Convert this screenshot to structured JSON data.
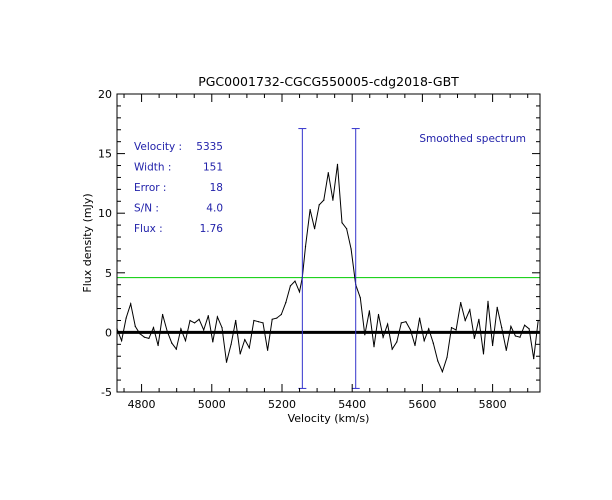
{
  "chart_data": {
    "type": "line",
    "title": "PGC0001732-CGCG550005-cdg2018-GBT",
    "xlabel": "Velocity (km/s)",
    "ylabel": "Flux density (mJy)",
    "xlim": [
      4730,
      5935
    ],
    "ylim": [
      -5,
      20
    ],
    "xticks": [
      4800,
      5000,
      5200,
      5400,
      5600,
      5800
    ],
    "yticks": [
      -5,
      0,
      5,
      10,
      15,
      20
    ],
    "grid": false,
    "annotation": "Smoothed spectrum",
    "stats": [
      {
        "label": "Velocity :",
        "value": "5335"
      },
      {
        "label": "Width :",
        "value": "151"
      },
      {
        "label": "Error :",
        "value": "18"
      },
      {
        "label": "S/N :",
        "value": "4.0"
      },
      {
        "label": "Flux :",
        "value": "1.76"
      }
    ],
    "zero_line": 0,
    "threshold_line": 4.6,
    "markers": [
      {
        "x": 5258,
        "ymin": -4.7,
        "ymax": 17.1
      },
      {
        "x": 5410,
        "ymin": -4.7,
        "ymax": 17.1
      }
    ],
    "colors": {
      "spectrum": "#000000",
      "threshold": "#00cc00",
      "markers": "#3333cc",
      "stats_text": "#2222aa"
    },
    "series": [
      {
        "x": [
          4730,
          4743,
          4756,
          4769,
          4782,
          4795,
          4808,
          4821,
          4834,
          4847,
          4860,
          4873,
          4886,
          4899,
          4912,
          4925,
          4938,
          4951,
          4964,
          4977,
          4990,
          5003,
          5016,
          5029,
          5042,
          5055,
          5068,
          5081,
          5094,
          5107,
          5120,
          5133,
          5146,
          5159,
          5172,
          5185,
          5198,
          5211,
          5224,
          5237,
          5250,
          5258,
          5267,
          5280,
          5293,
          5306,
          5319,
          5332,
          5345,
          5358,
          5371,
          5384,
          5397,
          5410,
          5423,
          5436,
          5449,
          5462,
          5475,
          5488,
          5501,
          5514,
          5527,
          5540,
          5553,
          5566,
          5579,
          5592,
          5605,
          5618,
          5631,
          5644,
          5657,
          5670,
          5683,
          5696,
          5709,
          5722,
          5735,
          5748,
          5761,
          5774,
          5787,
          5800,
          5813,
          5826,
          5839,
          5852,
          5865,
          5878,
          5891,
          5904,
          5917,
          5930
        ],
        "y": [
          0.3,
          -0.7,
          1.2,
          2.4,
          0.5,
          -0.1,
          -0.4,
          -0.5,
          0.4,
          -1.1,
          1.5,
          0.1,
          -0.9,
          -1.4,
          0.3,
          -0.7,
          1.0,
          0.8,
          1.1,
          0.2,
          1.4,
          -0.8,
          1.3,
          0.4,
          -2.5,
          -1.0,
          1.0,
          -1.8,
          -0.6,
          -1.3,
          1.0,
          0.9,
          0.8,
          -1.5,
          1.1,
          1.2,
          1.5,
          2.5,
          3.9,
          4.3,
          3.4,
          4.6,
          7.2,
          10.3,
          8.7,
          10.7,
          11.1,
          13.4,
          11.1,
          14.1,
          9.2,
          8.7,
          7.0,
          4.0,
          2.9,
          -0.2,
          1.8,
          -1.2,
          1.5,
          -0.4,
          0.7,
          -1.4,
          -0.8,
          0.8,
          0.9,
          0.2,
          -1.1,
          1.2,
          -0.7,
          0.3,
          -0.9,
          -2.4,
          -3.3,
          -2.1,
          0.4,
          0.2,
          2.5,
          1.0,
          1.9,
          -0.5,
          1.1,
          -1.8,
          2.6,
          -1.1,
          2.1,
          0.4,
          -1.5,
          0.5,
          -0.3,
          -0.4,
          0.6,
          0.3,
          -2.2,
          1.0
        ]
      }
    ]
  }
}
